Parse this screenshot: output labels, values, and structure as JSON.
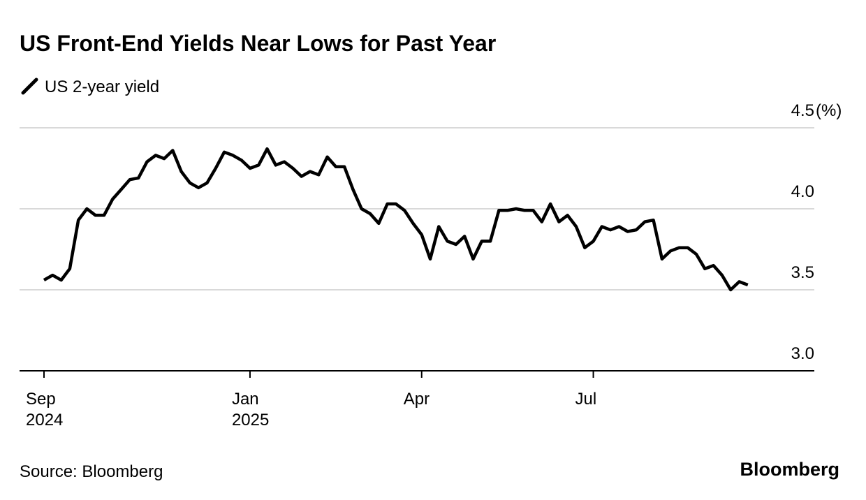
{
  "chart_data": {
    "type": "line",
    "title": "US Front-End Yields Near Lows for Past Year",
    "y_unit": "(%)",
    "source": "Source: Bloomberg",
    "brand": "Bloomberg",
    "categories": [
      "Sep 2024",
      null,
      null,
      null,
      null,
      null,
      null,
      null,
      null,
      null,
      null,
      null,
      null,
      null,
      null,
      null,
      null,
      null,
      null,
      null,
      null,
      null,
      null,
      null,
      "Jan 2025",
      null,
      null,
      null,
      null,
      null,
      null,
      null,
      null,
      null,
      null,
      null,
      null,
      null,
      null,
      null,
      null,
      null,
      null,
      null,
      "Apr",
      null,
      null,
      null,
      null,
      null,
      null,
      null,
      null,
      null,
      null,
      null,
      null,
      null,
      null,
      null,
      null,
      null,
      null,
      null,
      "Jul",
      null,
      null,
      null,
      null,
      null,
      null,
      null,
      null,
      null,
      null,
      null,
      null,
      null,
      null,
      null,
      null,
      null,
      null
    ],
    "series": [
      {
        "name": "US 2-year yield",
        "color": "#000000",
        "values": [
          3.56,
          3.59,
          3.56,
          3.63,
          3.93,
          4.0,
          3.96,
          3.96,
          4.06,
          4.12,
          4.18,
          4.19,
          4.29,
          4.33,
          4.31,
          4.36,
          4.23,
          4.16,
          4.13,
          4.16,
          4.25,
          4.35,
          4.33,
          4.3,
          4.25,
          4.27,
          4.37,
          4.27,
          4.29,
          4.25,
          4.2,
          4.23,
          4.21,
          4.32,
          4.26,
          4.26,
          4.12,
          4.0,
          3.97,
          3.91,
          4.03,
          4.03,
          3.99,
          3.91,
          3.84,
          3.69,
          3.89,
          3.8,
          3.78,
          3.83,
          3.69,
          3.8,
          3.8,
          3.99,
          3.99,
          4.0,
          3.99,
          3.99,
          3.92,
          4.03,
          3.92,
          3.96,
          3.89,
          3.76,
          3.8,
          3.89,
          3.87,
          3.89,
          3.86,
          3.87,
          3.92,
          3.93,
          3.69,
          3.74,
          3.76,
          3.76,
          3.72,
          3.63,
          3.65,
          3.59,
          3.5,
          3.55,
          3.53
        ]
      }
    ],
    "ylim": [
      3.0,
      4.5
    ],
    "yticks": [
      {
        "value": 3,
        "label": "3.0"
      },
      3.5,
      {
        "value": 4,
        "label": "4.0"
      },
      4.5
    ],
    "grid": true
  }
}
